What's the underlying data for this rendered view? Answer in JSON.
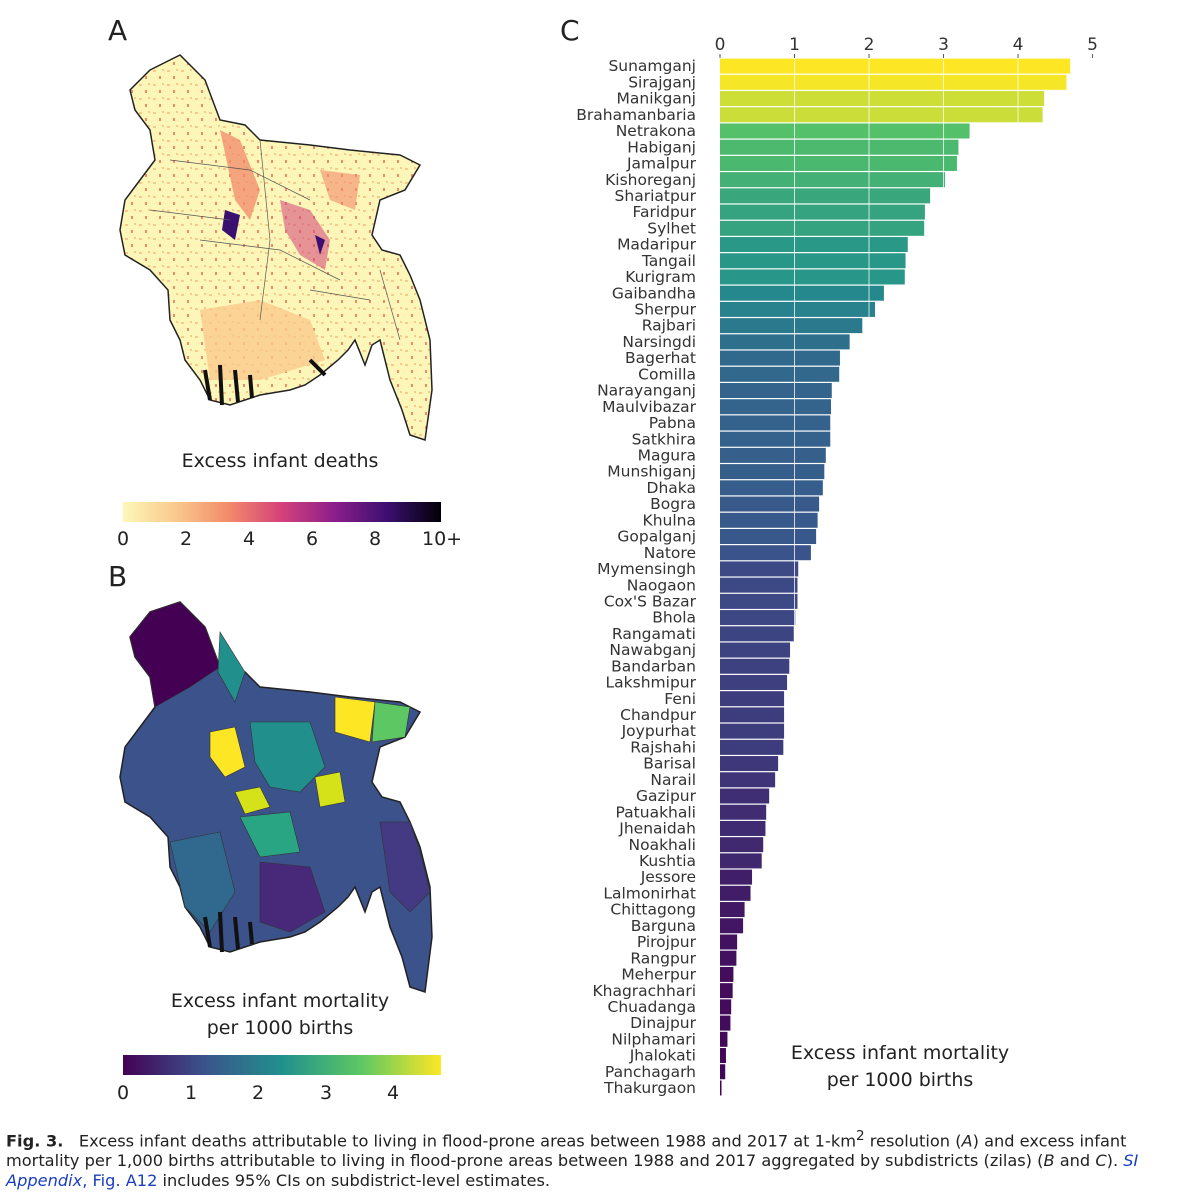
{
  "panels": {
    "a": {
      "letter": "A",
      "legend_title": "Excess infant deaths",
      "colorbar_ticks": [
        "0",
        "2",
        "4",
        "6",
        "8",
        "10+"
      ],
      "colors": [
        "#fcf7b8",
        "#f9c98c",
        "#f28a6a",
        "#d4417a",
        "#8a1e8a",
        "#3b0f70",
        "#000004"
      ]
    },
    "b": {
      "letter": "B",
      "legend_title_line1": "Excess infant mortality",
      "legend_title_line2": "per 1000 births",
      "colorbar_ticks": [
        "0",
        "1",
        "2",
        "3",
        "4"
      ],
      "colors": [
        "#440154",
        "#3b528b",
        "#21908d",
        "#5dc863",
        "#fde725"
      ]
    },
    "c": {
      "letter": "C",
      "legend_title_line1": "Excess infant mortality",
      "legend_title_line2": "per 1000 births"
    }
  },
  "chart_data": {
    "type": "bar",
    "orientation": "horizontal",
    "title": "",
    "xlabel": "Excess infant mortality per 1000 births",
    "ylabel": "",
    "xlim": [
      0,
      5.1
    ],
    "xticks": [
      0,
      1,
      2,
      3,
      4,
      5
    ],
    "grid": true,
    "colormap": "viridis",
    "categories": [
      "Sunamganj",
      "Sirajganj",
      "Manikganj",
      "Brahamanbaria",
      "Netrakona",
      "Habiganj",
      "Jamalpur",
      "Kishoreganj",
      "Shariatpur",
      "Faridpur",
      "Sylhet",
      "Madaripur",
      "Tangail",
      "Kurigram",
      "Gaibandha",
      "Sherpur",
      "Rajbari",
      "Narsingdi",
      "Bagerhat",
      "Comilla",
      "Narayanganj",
      "Maulvibazar",
      "Pabna",
      "Satkhira",
      "Magura",
      "Munshiganj",
      "Dhaka",
      "Bogra",
      "Khulna",
      "Gopalganj",
      "Natore",
      "Mymensingh",
      "Naogaon",
      "Cox'S Bazar",
      "Bhola",
      "Rangamati",
      "Nawabganj",
      "Bandarban",
      "Lakshmipur",
      "Feni",
      "Chandpur",
      "Joypurhat",
      "Rajshahi",
      "Barisal",
      "Narail",
      "Gazipur",
      "Patuakhali",
      "Jhenaidah",
      "Noakhali",
      "Kushtia",
      "Jessore",
      "Lalmonirhat",
      "Chittagong",
      "Barguna",
      "Pirojpur",
      "Rangpur",
      "Meherpur",
      "Khagrachhari",
      "Chuadanga",
      "Dinajpur",
      "Nilphamari",
      "Jhalokati",
      "Panchagarh",
      "Thakurgaon"
    ],
    "values": [
      4.7,
      4.65,
      4.35,
      4.33,
      3.35,
      3.2,
      3.18,
      3.02,
      2.82,
      2.75,
      2.74,
      2.52,
      2.49,
      2.48,
      2.2,
      2.08,
      1.91,
      1.74,
      1.61,
      1.6,
      1.5,
      1.49,
      1.48,
      1.48,
      1.42,
      1.4,
      1.38,
      1.33,
      1.31,
      1.29,
      1.22,
      1.05,
      1.04,
      1.04,
      1.01,
      0.99,
      0.94,
      0.93,
      0.9,
      0.86,
      0.86,
      0.86,
      0.85,
      0.78,
      0.74,
      0.66,
      0.62,
      0.61,
      0.58,
      0.56,
      0.43,
      0.41,
      0.33,
      0.31,
      0.23,
      0.22,
      0.18,
      0.17,
      0.15,
      0.14,
      0.1,
      0.08,
      0.07,
      0.02
    ]
  },
  "caption": {
    "label": "Fig. 3.",
    "part1": "Excess infant deaths attributable to living in flood-prone areas between 1988 and 2017 at 1-km",
    "sup": "2",
    "part2": " resolution (",
    "a_ref": "A",
    "part3": ") and excess infant mortality per 1,000 births attributable to living in flood-prone areas between 1988 and 2017 aggregated by subdistricts (zilas) (",
    "b_ref": "B",
    "and": " and ",
    "c_ref": "C",
    "part4": "). ",
    "si_link": "SI Appendix",
    "si_fig": ", Fig. A12",
    "part5": " includes 95% CIs on subdistrict-level estimates."
  }
}
